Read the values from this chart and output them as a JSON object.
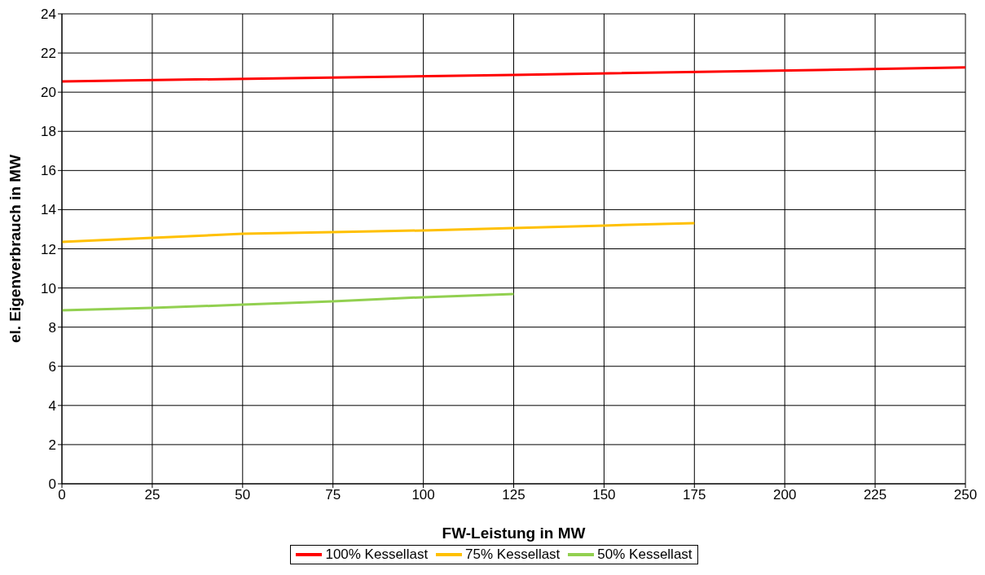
{
  "chart_data": {
    "type": "line",
    "xlabel": "FW-Leistung in MW",
    "ylabel": "el. Eigenverbrauch in MW",
    "xlim": [
      0,
      250
    ],
    "xticks": [
      0,
      25,
      50,
      75,
      100,
      125,
      150,
      175,
      200,
      225,
      250
    ],
    "ylim": [
      0,
      24
    ],
    "yticks": [
      0,
      2,
      4,
      6,
      8,
      10,
      12,
      14,
      16,
      18,
      20,
      22,
      24
    ],
    "grid": true,
    "legend": "bottom",
    "marker": "none",
    "line_style": "solid",
    "series": [
      {
        "name": "100% Kessellast",
        "color": "#ff0000",
        "x": [
          0,
          125,
          250
        ],
        "values": [
          20.55,
          20.88,
          21.26
        ]
      },
      {
        "name": "75% Kessellast",
        "color": "#ffc000",
        "x": [
          0,
          25,
          50,
          75,
          100,
          125,
          150,
          175
        ],
        "values": [
          12.35,
          12.56,
          12.77,
          12.85,
          12.94,
          13.06,
          13.19,
          13.31
        ]
      },
      {
        "name": "50% Kessellast",
        "color": "#92d050",
        "x": [
          0,
          25,
          50,
          75,
          100,
          125
        ],
        "values": [
          8.86,
          8.98,
          9.15,
          9.32,
          9.53,
          9.69
        ]
      }
    ]
  }
}
